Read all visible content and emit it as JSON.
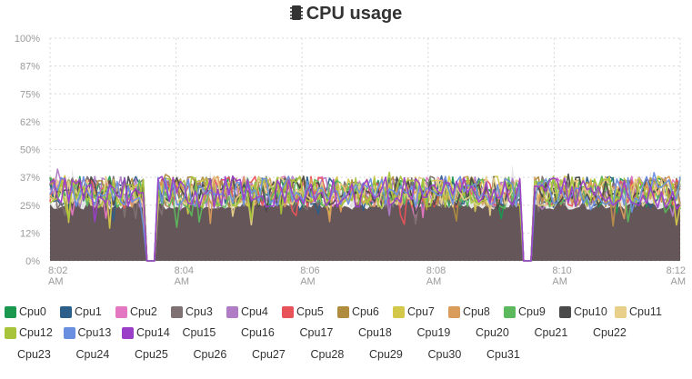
{
  "title": "CPU usage",
  "title_icon": "cpu-chip-icon",
  "chart_data": {
    "type": "area",
    "ylim": [
      0,
      100
    ],
    "y_ticks": [
      "100%",
      "87%",
      "75%",
      "62%",
      "50%",
      "37%",
      "25%",
      "12%",
      "0%"
    ],
    "x_ticks": [
      {
        "time": "8:02",
        "ampm": "AM"
      },
      {
        "time": "8:04",
        "ampm": "AM"
      },
      {
        "time": "8:06",
        "ampm": "AM"
      },
      {
        "time": "8:08",
        "ampm": "AM"
      },
      {
        "time": "8:10",
        "ampm": "AM"
      },
      {
        "time": "8:12",
        "ampm": "AM"
      }
    ],
    "x_range_minutes": [
      0,
      10
    ],
    "grid": true,
    "gaps_at_minutes": [
      1.6,
      7.55
    ],
    "baseline_level_percent": 27,
    "fill_color": "#5a4a4e",
    "legend_position": "bottom",
    "series": [
      {
        "name": "Cpu0",
        "color": "#1a9850",
        "shown": true
      },
      {
        "name": "Cpu1",
        "color": "#2c5f8a",
        "shown": true
      },
      {
        "name": "Cpu2",
        "color": "#e377c2",
        "shown": true
      },
      {
        "name": "Cpu3",
        "color": "#7f7171",
        "shown": true
      },
      {
        "name": "Cpu4",
        "color": "#b07cc6",
        "shown": true
      },
      {
        "name": "Cpu5",
        "color": "#e8535a",
        "shown": true
      },
      {
        "name": "Cpu6",
        "color": "#b08d3e",
        "shown": true
      },
      {
        "name": "Cpu7",
        "color": "#d4c84b",
        "shown": true
      },
      {
        "name": "Cpu8",
        "color": "#d99c5a",
        "shown": true
      },
      {
        "name": "Cpu9",
        "color": "#5cb85c",
        "shown": true
      },
      {
        "name": "Cpu10",
        "color": "#4a4a4a",
        "shown": true
      },
      {
        "name": "Cpu11",
        "color": "#e8cf8a",
        "shown": true
      },
      {
        "name": "Cpu12",
        "color": "#a8c43a",
        "shown": true
      },
      {
        "name": "Cpu13",
        "color": "#6b8fe0",
        "shown": true
      },
      {
        "name": "Cpu14",
        "color": "#9b3fc9",
        "shown": true
      },
      {
        "name": "Cpu15",
        "shown": false
      },
      {
        "name": "Cpu16",
        "shown": false
      },
      {
        "name": "Cpu17",
        "shown": false
      },
      {
        "name": "Cpu18",
        "shown": false
      },
      {
        "name": "Cpu19",
        "shown": false
      },
      {
        "name": "Cpu20",
        "shown": false
      },
      {
        "name": "Cpu21",
        "shown": false
      },
      {
        "name": "Cpu22",
        "shown": false
      },
      {
        "name": "Cpu23",
        "shown": false
      },
      {
        "name": "Cpu24",
        "shown": false
      },
      {
        "name": "Cpu25",
        "shown": false
      },
      {
        "name": "Cpu26",
        "shown": false
      },
      {
        "name": "Cpu27",
        "shown": false
      },
      {
        "name": "Cpu28",
        "shown": false
      },
      {
        "name": "Cpu29",
        "shown": false
      },
      {
        "name": "Cpu30",
        "shown": false
      },
      {
        "name": "Cpu31",
        "shown": false
      }
    ]
  }
}
